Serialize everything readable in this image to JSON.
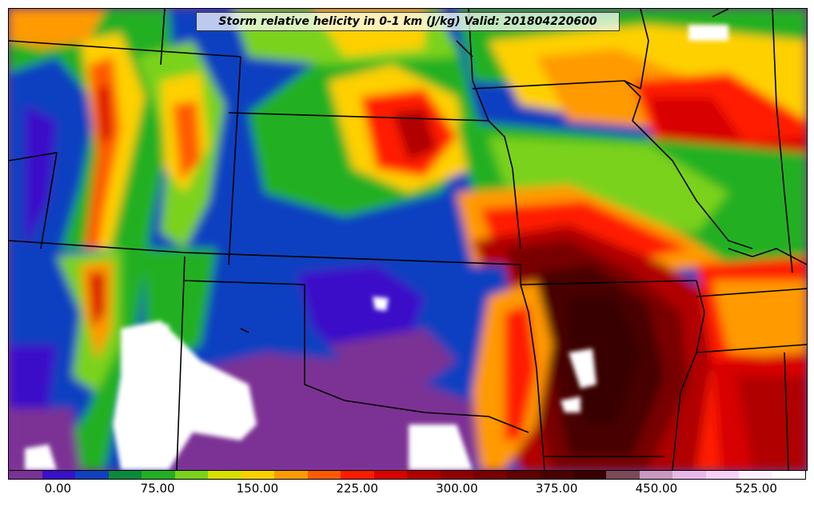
{
  "title": "Storm relative helicity in 0-1 km (J/kg) Valid: 201804220600",
  "colorbar": {
    "min": -37.5,
    "max": 562.5,
    "step": 25,
    "tick_labels": [
      "0.00",
      "75.00",
      "150.00",
      "225.00",
      "300.00",
      "375.00",
      "450.00",
      "525.00"
    ],
    "tick_values": [
      0,
      75,
      150,
      225,
      300,
      375,
      450,
      525
    ],
    "colors": [
      "#7b3294",
      "#3a10c8",
      "#1040c0",
      "#0a8a3a",
      "#22b022",
      "#7ad21a",
      "#d8e000",
      "#ffd000",
      "#ff9a00",
      "#ff5a00",
      "#ff1a00",
      "#d80000",
      "#b00000",
      "#900000",
      "#780000",
      "#600000",
      "#4a0000",
      "#380000",
      "#7a4a5a",
      "#c898c0",
      "#e8b8e8",
      "#f8d0f8",
      "#fff0ff",
      "#ffffff"
    ]
  },
  "map": {
    "background_color": "#7b3294",
    "border_color": "#000000"
  }
}
